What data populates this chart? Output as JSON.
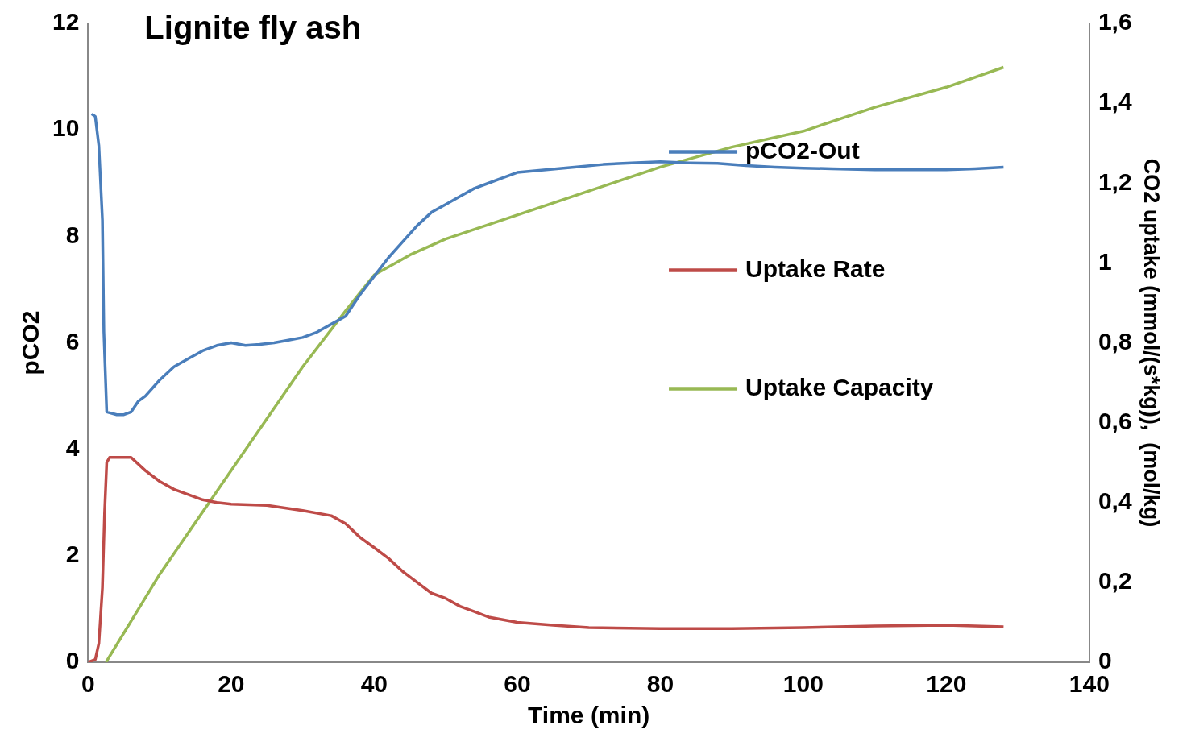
{
  "chart_data": {
    "type": "line",
    "title": "Lignite fly ash",
    "xlabel": "Time (min)",
    "ylabel": "pCO2",
    "y2label": "CO2 uptake (mmol/(s*kg)),  (mol/kg)",
    "xlim": [
      0,
      140
    ],
    "xticks": [
      0,
      20,
      40,
      60,
      80,
      100,
      120,
      140
    ],
    "ylim": [
      0,
      12
    ],
    "yticks": [
      0,
      2,
      4,
      6,
      8,
      10,
      12
    ],
    "y2lim": [
      0,
      1.6
    ],
    "y2ticks": [
      0,
      {
        "value": 0.2,
        "label": "0,2"
      },
      {
        "value": 0.4,
        "label": "0,4"
      },
      {
        "value": 0.6,
        "label": "0,6"
      },
      {
        "value": 0.8,
        "label": "0,8"
      },
      1,
      {
        "value": 1.2,
        "label": "1,2"
      },
      {
        "value": 1.4,
        "label": "1,4"
      },
      {
        "value": 1.6,
        "label": "1,6"
      }
    ],
    "grid": false,
    "legend": "right",
    "marker": "none",
    "line_style": "solid",
    "series": [
      {
        "name": "pCO2-Out",
        "color": "#4a7ebb",
        "x": [
          0.5,
          1,
          1.5,
          2,
          2.2,
          2.6,
          4,
          5,
          6,
          7,
          8,
          10,
          12,
          14,
          16,
          18,
          20,
          22,
          24,
          26,
          28,
          30,
          32,
          34,
          36,
          38,
          40,
          42,
          44,
          46,
          48,
          50,
          52,
          54,
          56,
          58,
          60,
          64,
          68,
          72,
          76,
          80,
          84,
          88,
          92,
          96,
          100,
          104,
          110,
          116,
          120,
          124,
          128
        ],
        "values": [
          10.3,
          10.25,
          9.7,
          8.3,
          6.2,
          4.7,
          4.65,
          4.65,
          4.7,
          4.9,
          5.0,
          5.3,
          5.55,
          5.7,
          5.85,
          5.95,
          6.0,
          5.95,
          5.97,
          6.0,
          6.05,
          6.1,
          6.2,
          6.35,
          6.5,
          6.9,
          7.25,
          7.6,
          7.9,
          8.2,
          8.45,
          8.6,
          8.75,
          8.9,
          9.0,
          9.1,
          9.2,
          9.25,
          9.3,
          9.35,
          9.38,
          9.4,
          9.38,
          9.37,
          9.33,
          9.3,
          9.28,
          9.27,
          9.25,
          9.25,
          9.25,
          9.27,
          9.3
        ]
      },
      {
        "name": "Uptake Rate",
        "color": "#be4b48",
        "axis": "y2",
        "x": [
          0,
          1,
          1.5,
          2,
          2.3,
          2.6,
          3,
          6,
          8,
          10,
          12,
          14,
          16,
          18,
          20,
          25,
          30,
          34,
          36,
          38,
          40,
          42,
          44,
          46,
          48,
          50,
          52,
          54,
          56,
          60,
          65,
          70,
          80,
          90,
          100,
          110,
          120,
          128
        ],
        "values": [
          0,
          0.007,
          0.047,
          0.187,
          0.373,
          0.5,
          0.513,
          0.513,
          0.48,
          0.453,
          0.433,
          0.42,
          0.407,
          0.4,
          0.396,
          0.393,
          0.38,
          0.367,
          0.347,
          0.313,
          0.287,
          0.26,
          0.227,
          0.2,
          0.173,
          0.16,
          0.14,
          0.127,
          0.113,
          0.1,
          0.093,
          0.087,
          0.084,
          0.084,
          0.087,
          0.091,
          0.093,
          0.089
        ]
      },
      {
        "name": "Uptake Capacity",
        "color": "#98b954",
        "axis": "y2",
        "x": [
          2.5,
          10,
          20,
          30,
          36,
          40,
          45,
          50,
          60,
          70,
          80,
          90,
          100,
          110,
          120,
          128
        ],
        "values": [
          0,
          0.22,
          0.48,
          0.74,
          0.88,
          0.97,
          1.02,
          1.06,
          1.12,
          1.18,
          1.24,
          1.29,
          1.33,
          1.39,
          1.44,
          1.49
        ]
      }
    ]
  }
}
